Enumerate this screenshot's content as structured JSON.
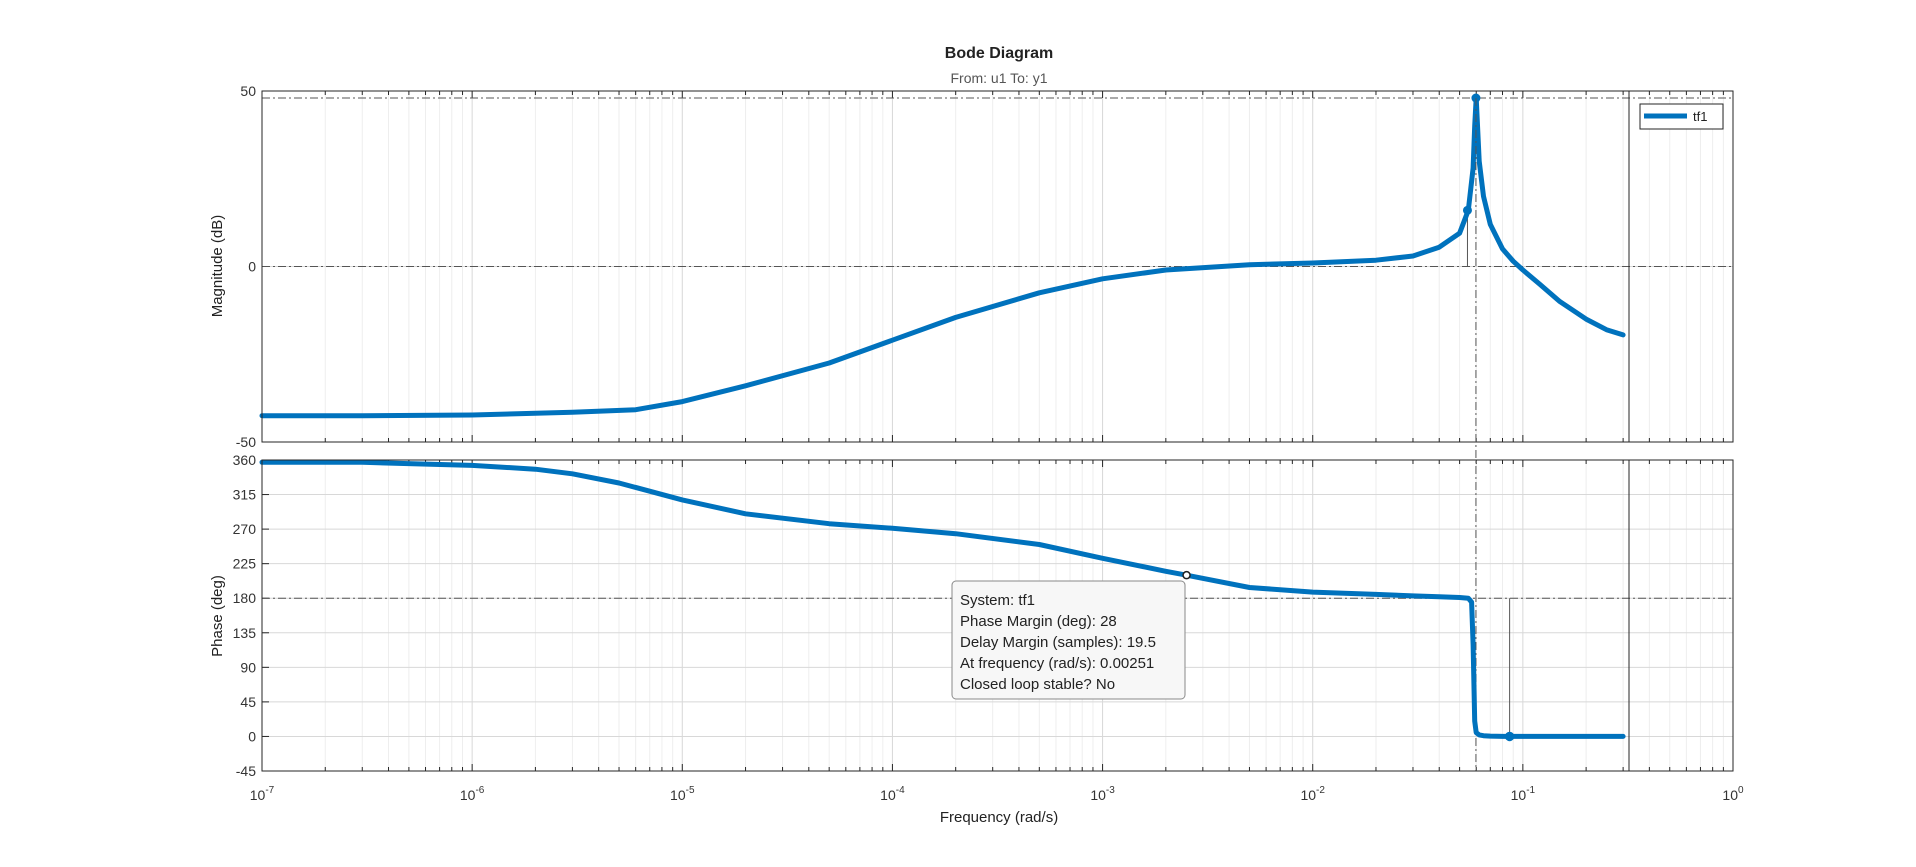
{
  "chart_data": {
    "type": "line",
    "title": "Bode Diagram",
    "subtitle": "From: u1  To: y1",
    "xlabel": "Frequency  (rad/s)",
    "xscale": "log",
    "xlim": [
      1e-07,
      1
    ],
    "x_tick_labels": [
      {
        "base": "10",
        "exp": "-7"
      },
      {
        "base": "10",
        "exp": "-6"
      },
      {
        "base": "10",
        "exp": "-5"
      },
      {
        "base": "10",
        "exp": "-4"
      },
      {
        "base": "10",
        "exp": "-3"
      },
      {
        "base": "10",
        "exp": "-2"
      },
      {
        "base": "10",
        "exp": "-1"
      },
      {
        "base": "10",
        "exp": "0"
      }
    ],
    "legend": {
      "position": "top-right",
      "entries": [
        "tf1"
      ]
    },
    "grid": true,
    "color": "#0072BD",
    "magnitude": {
      "ylabel": "Magnitude (dB)",
      "ylim": [
        -50,
        50
      ],
      "yticks": [
        -50,
        0,
        50
      ],
      "series": [
        {
          "name": "tf1",
          "x": [
            1e-07,
            3e-07,
            1e-06,
            3e-06,
            6e-06,
            1e-05,
            2e-05,
            5e-05,
            0.0001,
            0.0002,
            0.0005,
            0.001,
            0.002,
            0.005,
            0.01,
            0.02,
            0.03,
            0.04,
            0.05,
            0.055,
            0.058,
            0.059,
            0.06,
            0.062,
            0.065,
            0.07,
            0.08,
            0.09,
            0.1,
            0.12,
            0.15,
            0.2,
            0.25,
            0.3
          ],
          "y": [
            -42.5,
            -42.5,
            -42.3,
            -41.5,
            -40.8,
            -38.5,
            -34.0,
            -27.5,
            -21.0,
            -14.5,
            -7.5,
            -3.5,
            -1.0,
            0.5,
            1.0,
            1.8,
            3.0,
            5.5,
            9.5,
            16.0,
            28.0,
            40.0,
            48.0,
            30.0,
            20.0,
            12.0,
            5.0,
            1.5,
            -1.0,
            -5.0,
            -10.0,
            -15.0,
            -18.0,
            -19.5
          ]
        }
      ],
      "markers": [
        {
          "x": 0.0545,
          "y": 16
        },
        {
          "x": 0.0598,
          "y": 48
        }
      ]
    },
    "phase": {
      "ylabel": "Phase (deg)",
      "ylim": [
        -45,
        360
      ],
      "yticks": [
        -45,
        0,
        45,
        90,
        135,
        180,
        225,
        270,
        315,
        360
      ],
      "series": [
        {
          "name": "tf1",
          "x": [
            1e-07,
            3e-07,
            1e-06,
            2e-06,
            3e-06,
            5e-06,
            1e-05,
            2e-05,
            5e-05,
            0.0001,
            0.0002,
            0.0005,
            0.001,
            0.002,
            0.00251,
            0.005,
            0.01,
            0.02,
            0.03,
            0.04,
            0.05,
            0.055,
            0.057,
            0.058,
            0.059,
            0.06,
            0.062,
            0.065,
            0.07,
            0.08,
            0.1,
            0.15,
            0.2,
            0.3
          ],
          "y": [
            357,
            357,
            353,
            348,
            342,
            330,
            308,
            290,
            277,
            271,
            264,
            250,
            232,
            215,
            210,
            194,
            188,
            185,
            183,
            182,
            181,
            180,
            175,
            120,
            20,
            5,
            2,
            1,
            0.5,
            0,
            0,
            0,
            0,
            0
          ]
        }
      ],
      "markers": [
        {
          "x": 0.00251,
          "y": 210
        },
        {
          "x": 0.0865,
          "y": 0
        }
      ]
    },
    "datatip": {
      "lines": [
        "System: tf1",
        "Phase Margin (deg): 28",
        "Delay Margin (samples): 19.5",
        "At frequency (rad/s): 0.00251",
        "Closed loop stable? No"
      ]
    }
  }
}
